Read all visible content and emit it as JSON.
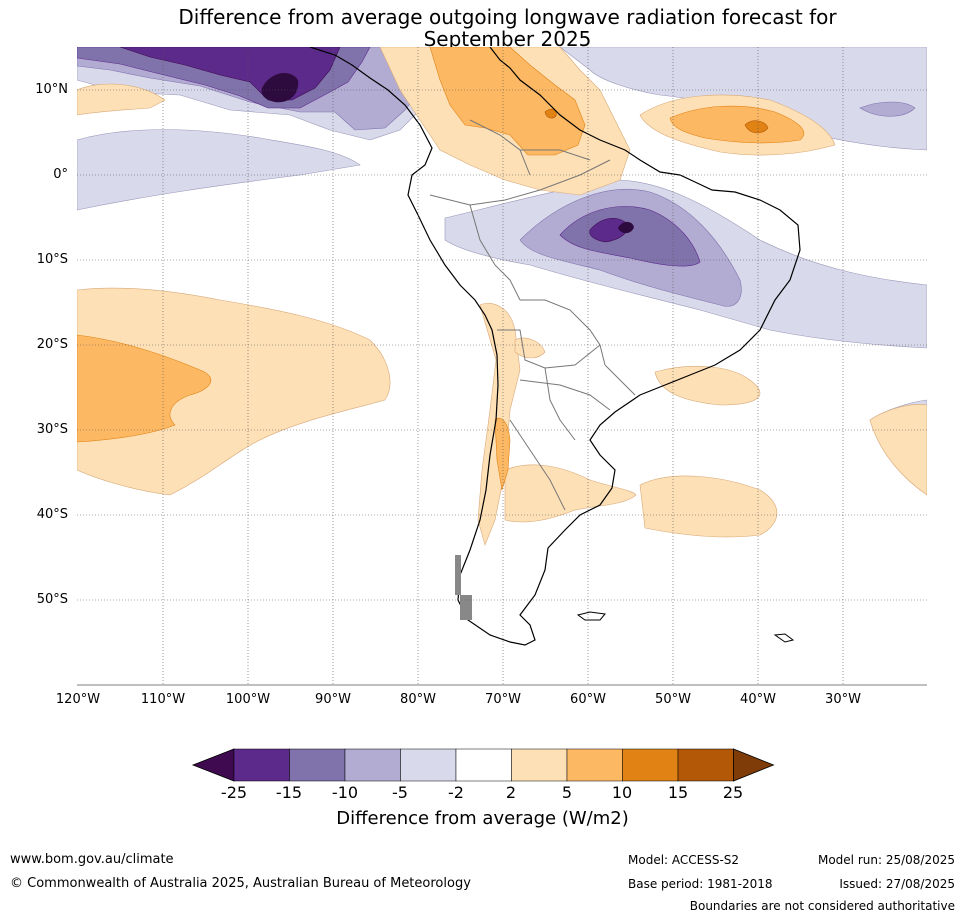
{
  "title_line1": "Difference from average outgoing longwave radiation forecast for",
  "title_line2": "September 2025",
  "lat_labels": [
    "10°N",
    "0°",
    "10°S",
    "20°S",
    "30°S",
    "40°S",
    "50°S"
  ],
  "lon_labels": [
    "120°W",
    "110°W",
    "100°W",
    "90°W",
    "80°W",
    "70°W",
    "60°W",
    "50°W",
    "40°W",
    "30°W"
  ],
  "colorbar": {
    "ticks": [
      "-25",
      "-15",
      "-10",
      "-5",
      "-2",
      "2",
      "5",
      "10",
      "15",
      "25"
    ],
    "colors": [
      "#3f0a50",
      "#5c2a8a",
      "#8073ac",
      "#b2abd2",
      "#d8daeb",
      "#ffffff",
      "#fee0b6",
      "#fdb863",
      "#e08214",
      "#b35806",
      "#7f3b08"
    ],
    "label": "Difference from average (W/m2)"
  },
  "footer": {
    "website": "www.bom.gov.au/climate",
    "copyright": "© Commonwealth of Australia 2025, Australian Bureau of Meteorology",
    "model": "Model: ACCESS-S2",
    "base_period": "Base period: 1981-2018",
    "model_run": "Model run: 25/08/2025",
    "issued": "Issued: 27/08/2025",
    "disclaimer": "Boundaries are not considered authoritative"
  }
}
